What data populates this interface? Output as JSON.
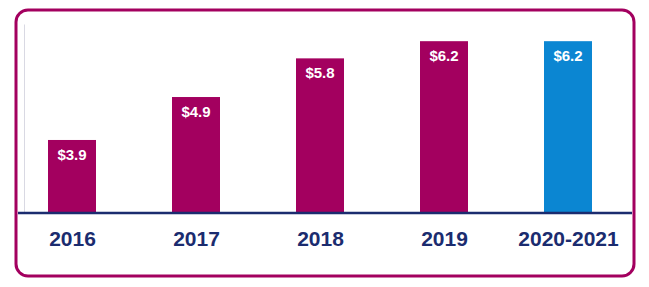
{
  "chart_data": {
    "type": "bar",
    "categories": [
      "2016",
      "2017",
      "2018",
      "2019",
      "2020-2021"
    ],
    "values": [
      3.9,
      4.9,
      5.8,
      6.2,
      6.2
    ],
    "value_labels": [
      "$3.9",
      "$4.9",
      "$5.8",
      "$6.2",
      "$6.2"
    ],
    "colors": [
      "#a3005f",
      "#a3005f",
      "#a3005f",
      "#a3005f",
      "#0b86d2"
    ],
    "ylim": [
      2.2,
      6.6
    ],
    "data_labels": true,
    "tick_labels": "x",
    "grid": false
  }
}
